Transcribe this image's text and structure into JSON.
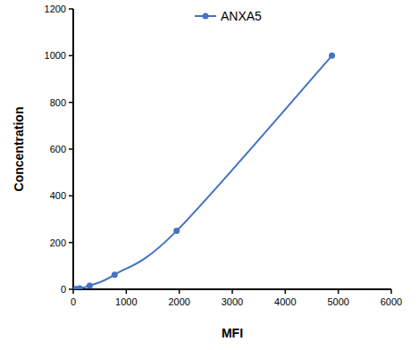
{
  "chart_data": {
    "type": "line",
    "x_label": "MFI",
    "y_label": "Concentration",
    "x": [
      20,
      50,
      120,
      310,
      780,
      1950,
      4880
    ],
    "series": [
      {
        "name": "ANXA5",
        "color": "#4472c4",
        "marker": "circle",
        "values": [
          0,
          0.98,
          3.9,
          15.6,
          62.5,
          250,
          1000
        ]
      }
    ],
    "xlim": [
      0,
      6000
    ],
    "xticks": [
      0,
      1000,
      2000,
      3000,
      4000,
      5000,
      6000
    ],
    "ylim": [
      0,
      1200
    ],
    "yticks": [
      0,
      200,
      400,
      600,
      800,
      1000,
      1200
    ],
    "grid": false,
    "legend": "top"
  }
}
